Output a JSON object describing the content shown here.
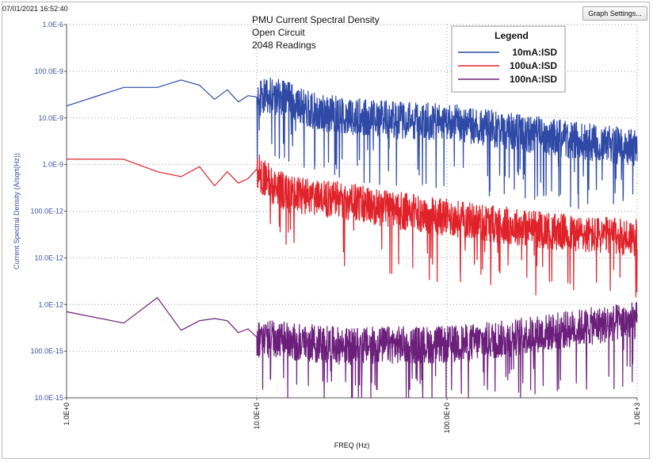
{
  "timestamp": "07/01/2021 16:52:40",
  "toolbar": {
    "graph_settings_label": "Graph Settings..."
  },
  "colors": {
    "series1": "#2e49a6",
    "series2": "#e0222a",
    "series3": "#6b1f7b",
    "axis_label": "#3b4fa0",
    "grid": "#9a9a9a"
  },
  "chart_data": {
    "type": "line",
    "title_lines": [
      "PMU Current Spectral Density",
      "Open Circuit",
      "2048 Readings"
    ],
    "xlabel": "FREQ (Hz)",
    "ylabel": "Current Spectral Density (A/sqrt(Hz))",
    "xscale": "log",
    "yscale": "log",
    "xlim": [
      1,
      1000
    ],
    "ylim": [
      1e-14,
      1e-06
    ],
    "x_tick_labels": [
      "1.0E+0",
      "10.0E+0",
      "100.0E+0",
      "1.0E+3"
    ],
    "y_tick_labels": [
      "1.0E-6",
      "100.0E-9",
      "10.0E-9",
      "1.0E-9",
      "100.0E-12",
      "10.0E-12",
      "1.0E-12",
      "100.0E-15",
      "10.0E-15"
    ],
    "grid": true,
    "legend": {
      "title": "Legend",
      "placement": "top-right"
    },
    "series": [
      {
        "name": "10mA:ISD",
        "color": "#2e49a6",
        "x": [
          1,
          2,
          3,
          4,
          5,
          6,
          7,
          8,
          9,
          10,
          12,
          15,
          20,
          30,
          50,
          100,
          200,
          500,
          1000
        ],
        "y": [
          1.8e-08,
          4.5e-08,
          4.5e-08,
          6.5e-08,
          5e-08,
          2.5e-08,
          4e-08,
          2.2e-08,
          3e-08,
          2.8e-08,
          3.5e-08,
          2.5e-08,
          1.5e-08,
          1.2e-08,
          1e-08,
          9e-09,
          6e-09,
          3.5e-09,
          2.5e-09
        ],
        "noise_from": 10,
        "noise_amp": 0.4
      },
      {
        "name": "100uA:ISD",
        "color": "#e0222a",
        "x": [
          1,
          2,
          3,
          4,
          5,
          6,
          7,
          8,
          9,
          10,
          12,
          15,
          20,
          30,
          50,
          100,
          200,
          500,
          1000
        ],
        "y": [
          1.3e-09,
          1.3e-09,
          7e-10,
          5.5e-10,
          9e-10,
          3.5e-10,
          7e-10,
          4e-10,
          5e-10,
          8e-10,
          4e-10,
          2.5e-10,
          2.2e-10,
          1.8e-10,
          1.2e-10,
          8e-11,
          5.5e-11,
          3.5e-11,
          3e-11
        ],
        "noise_from": 10,
        "noise_amp": 0.4
      },
      {
        "name": "100nA:ISD",
        "color": "#6b1f7b",
        "x": [
          1,
          2,
          3,
          4,
          5,
          6,
          7,
          8,
          9,
          10,
          12,
          15,
          20,
          30,
          50,
          100,
          200,
          500,
          1000
        ],
        "y": [
          7e-13,
          4e-13,
          1.4e-12,
          2.8e-13,
          4.5e-13,
          5e-13,
          4.5e-13,
          2.5e-13,
          3e-13,
          2e-13,
          2e-13,
          1.8e-13,
          1.6e-13,
          1.4e-13,
          1.5e-13,
          1.5e-13,
          2e-13,
          3.5e-13,
          5e-13
        ],
        "noise_from": 10,
        "noise_amp": 0.4
      }
    ]
  }
}
